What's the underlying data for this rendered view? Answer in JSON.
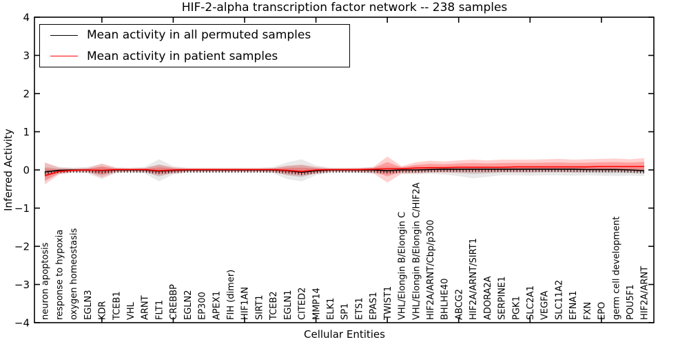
{
  "chart_data": {
    "type": "line",
    "title": "HIF-2-alpha transcription factor network -- 238 samples",
    "xlabel": "Cellular Entities",
    "ylabel": "Inferred Activity",
    "ylim": [
      -4,
      4
    ],
    "yticks": [
      4,
      3,
      2,
      1,
      0,
      -1,
      -2,
      -3,
      -4
    ],
    "xtick_entity_numbers": [
      5,
      10,
      15,
      20,
      25,
      30,
      35,
      40
    ],
    "grid": false,
    "legend_position": "upper left",
    "legend": [
      {
        "label": "Mean activity in all permuted samples",
        "color": "#000000"
      },
      {
        "label": "Mean activity in patient samples",
        "color": "#ff0000"
      }
    ],
    "categories": [
      "neuron apoptosis",
      "response to hypoxia",
      "oxygen homeostasis",
      "EGLN3",
      "KDR",
      "TCEB1",
      "VHL",
      "ARNT",
      "FLT1",
      "CREBBP",
      "EGLN2",
      "EP300",
      "APEX1",
      "FIH (dimer)",
      "HIF1AN",
      "SIRT1",
      "TCEB2",
      "EGLN1",
      "CITED2",
      "MMP14",
      "ELK1",
      "SP1",
      "ETS1",
      "EPAS1",
      "TWIST1",
      "VHL/Elongin B/Elongin C",
      "VHL/Elongin B/Elongin C/HIF2A",
      "HIF2A/ARNT/Cbp/p300",
      "BHLHE40",
      "ABCG2",
      "HIF2A/ARNT/SIRT1",
      "ADORA2A",
      "SERPINE1",
      "PGK1",
      "SLC2A1",
      "VEGFA",
      "SLC11A2",
      "EFNA1",
      "FXN",
      "EPO",
      "germ cell development",
      "POU5F1",
      "HIF2A/ARNT"
    ],
    "series": [
      {
        "name": "Mean activity in all permuted samples",
        "color": "#000000",
        "style": "solid-with-tick-markers",
        "values": [
          -0.05,
          -0.01,
          0,
          0,
          -0.02,
          0,
          0,
          0,
          -0.03,
          -0.01,
          0,
          0,
          0,
          0,
          0,
          0,
          0,
          -0.02,
          -0.06,
          -0.02,
          0,
          0,
          0,
          0,
          -0.02,
          0,
          0,
          0.01,
          0.02,
          0.02,
          0.02,
          0.02,
          0.02,
          0.02,
          0.02,
          0.02,
          0.02,
          0.02,
          0.01,
          0.01,
          0.01,
          0,
          -0.02
        ]
      },
      {
        "name": "Mean activity in patient samples",
        "color": "#ff0000",
        "style": "solid",
        "values": [
          -0.15,
          -0.04,
          -0.01,
          0,
          -0.01,
          0.01,
          0.01,
          0.01,
          -0.02,
          0,
          0.01,
          0.01,
          0.01,
          0.01,
          0.01,
          0.01,
          0.01,
          -0.01,
          -0.04,
          0,
          0.01,
          0.01,
          0.01,
          0.02,
          0.03,
          0.03,
          0.05,
          0.06,
          0.06,
          0.07,
          0.07,
          0.07,
          0.07,
          0.08,
          0.08,
          0.08,
          0.08,
          0.08,
          0.08,
          0.09,
          0.09,
          0.09,
          0.09
        ]
      }
    ],
    "bands": [
      {
        "name": "permuted-activity-spread",
        "color": "#999999",
        "opacity": 0.22,
        "series": 0,
        "upper": [
          0.18,
          0.08,
          0.06,
          0.08,
          0.15,
          0.07,
          0.06,
          0.08,
          0.28,
          0.1,
          0.06,
          0.06,
          0.06,
          0.06,
          0.06,
          0.06,
          0.08,
          0.2,
          0.28,
          0.12,
          0.06,
          0.06,
          0.06,
          0.08,
          0.1,
          0.08,
          0.09,
          0.08,
          0.09,
          0.1,
          0.1,
          0.09,
          0.08,
          0.08,
          0.08,
          0.08,
          0.08,
          0.08,
          0.08,
          0.08,
          0.08,
          0.08,
          0.08
        ],
        "lower": [
          -0.3,
          -0.1,
          -0.07,
          -0.09,
          -0.24,
          -0.08,
          -0.07,
          -0.09,
          -0.3,
          -0.12,
          -0.07,
          -0.07,
          -0.07,
          -0.07,
          -0.07,
          -0.07,
          -0.09,
          -0.24,
          -0.3,
          -0.14,
          -0.07,
          -0.07,
          -0.08,
          -0.1,
          -0.12,
          -0.1,
          -0.11,
          -0.1,
          -0.12,
          -0.16,
          -0.22,
          -0.18,
          -0.14,
          -0.14,
          -0.15,
          -0.14,
          -0.14,
          -0.15,
          -0.14,
          -0.15,
          -0.16,
          -0.15,
          -0.16
        ]
      },
      {
        "name": "patient-activity-spread",
        "color": "#ff2a2a",
        "opacity": 0.22,
        "series": 1,
        "upper": [
          0.2,
          0.06,
          0.04,
          0.05,
          0.17,
          0.05,
          0.04,
          0.05,
          0.14,
          0.07,
          0.04,
          0.04,
          0.04,
          0.04,
          0.04,
          0.04,
          0.05,
          0.11,
          0.14,
          0.08,
          0.04,
          0.04,
          0.05,
          0.07,
          0.35,
          0.1,
          0.2,
          0.24,
          0.22,
          0.25,
          0.27,
          0.25,
          0.27,
          0.27,
          0.27,
          0.28,
          0.29,
          0.27,
          0.28,
          0.29,
          0.3,
          0.28,
          0.31
        ],
        "lower": [
          -0.38,
          -0.12,
          -0.05,
          -0.06,
          -0.2,
          -0.06,
          -0.05,
          -0.06,
          -0.15,
          -0.09,
          -0.05,
          -0.05,
          -0.05,
          -0.05,
          -0.05,
          -0.05,
          -0.06,
          -0.13,
          -0.16,
          -0.1,
          -0.05,
          -0.05,
          -0.06,
          -0.08,
          -0.33,
          -0.1,
          -0.09,
          -0.07,
          -0.07,
          -0.07,
          -0.07,
          -0.07,
          -0.06,
          -0.06,
          -0.06,
          -0.05,
          -0.05,
          -0.06,
          -0.05,
          -0.05,
          -0.05,
          -0.06,
          -0.06
        ]
      }
    ],
    "band_inner_scale": 0.55
  }
}
